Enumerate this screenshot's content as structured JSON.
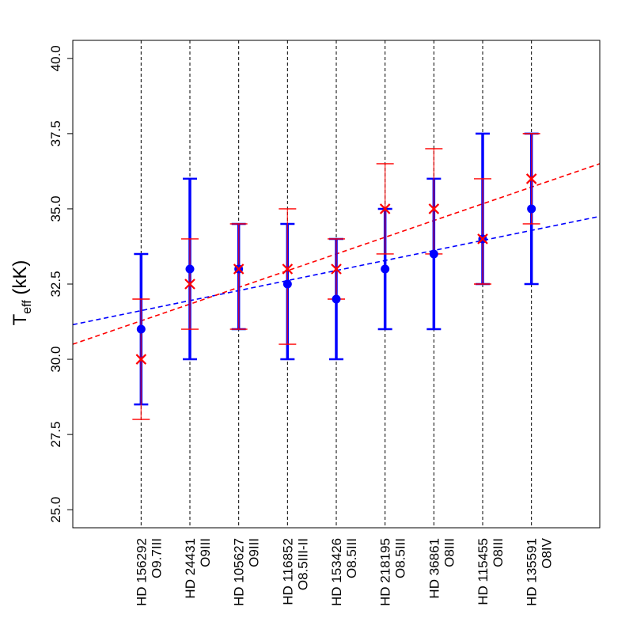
{
  "chart_data": {
    "type": "scatter",
    "title": "",
    "xlabel": "",
    "ylabel": {
      "main": "T",
      "sub": "eff",
      "unit": " (kK)"
    },
    "ylim": [
      24.4,
      40.6
    ],
    "yticks": [
      25.0,
      27.5,
      30.0,
      32.5,
      35.0,
      37.5,
      40.0
    ],
    "ytick_labels": [
      "25.0",
      "27.5",
      "30.0",
      "32.5",
      "35.0",
      "37.5",
      "40.0"
    ],
    "xlim": [
      -0.4,
      10.4
    ],
    "stars": [
      {
        "name": "HD 156292",
        "sptype": "O9.7III"
      },
      {
        "name": "HD 24431",
        "sptype": "O9III"
      },
      {
        "name": "HD 105627",
        "sptype": "O9III"
      },
      {
        "name": "HD 116852",
        "sptype": "O8.5III-II"
      },
      {
        "name": "HD 153426",
        "sptype": "O8.5III"
      },
      {
        "name": "HD 218195",
        "sptype": "O8.5III"
      },
      {
        "name": "HD 36861",
        "sptype": "O8III"
      },
      {
        "name": "HD 115455",
        "sptype": "O8III"
      },
      {
        "name": "HD 135591",
        "sptype": "O8IV"
      }
    ],
    "series": [
      {
        "name": "blue",
        "color": "#0000ff",
        "marker": "circle",
        "values": [
          31.0,
          33.0,
          33.0,
          32.5,
          32.0,
          33.0,
          33.5,
          34.0,
          35.0
        ],
        "err_low": [
          28.5,
          30.0,
          31.0,
          30.0,
          30.0,
          31.0,
          31.0,
          32.5,
          32.5
        ],
        "err_high": [
          33.5,
          36.0,
          34.5,
          34.5,
          34.0,
          35.0,
          36.0,
          37.5,
          37.5
        ],
        "fit": {
          "at_xmin": 31.15,
          "at_xmax": 34.75
        }
      },
      {
        "name": "red",
        "color": "#ff0000",
        "marker": "x",
        "values": [
          30.0,
          32.5,
          33.0,
          33.0,
          33.0,
          35.0,
          35.0,
          34.0,
          36.0
        ],
        "err_low": [
          28.0,
          31.0,
          31.0,
          30.5,
          32.0,
          33.5,
          33.5,
          32.5,
          34.5
        ],
        "err_high": [
          32.0,
          34.0,
          34.5,
          35.0,
          34.0,
          36.5,
          37.0,
          36.0,
          37.5
        ],
        "fit": {
          "at_xmin": 30.5,
          "at_xmax": 36.5
        }
      }
    ]
  }
}
